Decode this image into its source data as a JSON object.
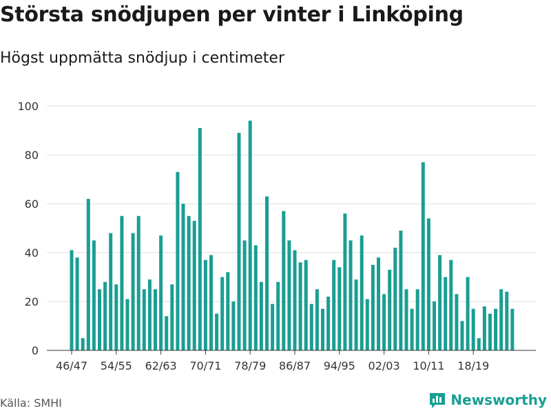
{
  "header": {
    "title": "Största snödjupen per vinter i Linköping",
    "subtitle": "Högst uppmätta snödjup i centimeter"
  },
  "footer": {
    "source": "Källa: SMHI",
    "brand": "Newsworthy",
    "brand_icon": "bar-chart-logo-icon"
  },
  "colors": {
    "bar": "#1a9e93",
    "grid": "#dddddd",
    "axis": "#333333"
  },
  "chart_data": {
    "type": "bar",
    "title": "Största snödjupen per vinter i Linköping",
    "subtitle": "Högst uppmätta snödjup i centimeter",
    "xlabel": "",
    "ylabel": "",
    "ylim": [
      0,
      100
    ],
    "yticks": [
      0,
      20,
      40,
      60,
      80,
      100
    ],
    "grid": true,
    "categories": [
      "46/47",
      "47/48",
      "48/49",
      "49/50",
      "50/51",
      "51/52",
      "52/53",
      "53/54",
      "54/55",
      "55/56",
      "56/57",
      "57/58",
      "58/59",
      "59/60",
      "60/61",
      "61/62",
      "62/63",
      "63/64",
      "64/65",
      "65/66",
      "66/67",
      "67/68",
      "68/69",
      "69/70",
      "70/71",
      "71/72",
      "72/73",
      "73/74",
      "74/75",
      "75/76",
      "76/77",
      "77/78",
      "78/79",
      "79/80",
      "80/81",
      "81/82",
      "82/83",
      "83/84",
      "84/85",
      "85/86",
      "86/87",
      "87/88",
      "88/89",
      "89/90",
      "90/91",
      "91/92",
      "92/93",
      "93/94",
      "94/95",
      "95/96",
      "96/97",
      "97/98",
      "98/99",
      "99/00",
      "00/01",
      "01/02",
      "02/03",
      "03/04",
      "04/05",
      "05/06",
      "06/07",
      "07/08",
      "08/09",
      "09/10",
      "10/11",
      "11/12",
      "12/13",
      "13/14",
      "14/15",
      "15/16",
      "16/17",
      "17/18",
      "18/19",
      "19/20",
      "20/21",
      "21/22",
      "22/23",
      "23/24",
      "24/25",
      "25/26"
    ],
    "tick_labels": [
      "46/47",
      "54/55",
      "62/63",
      "70/71",
      "78/79",
      "86/87",
      "94/95",
      "02/03",
      "10/11",
      "18/19"
    ],
    "values": [
      41,
      38,
      5,
      62,
      45,
      25,
      28,
      48,
      27,
      55,
      21,
      48,
      55,
      25,
      29,
      25,
      47,
      14,
      27,
      73,
      60,
      55,
      53,
      91,
      37,
      39,
      15,
      30,
      32,
      20,
      89,
      45,
      94,
      43,
      28,
      63,
      19,
      28,
      57,
      45,
      41,
      36,
      37,
      19,
      25,
      17,
      22,
      37,
      34,
      56,
      45,
      29,
      47,
      21,
      35,
      38,
      23,
      33,
      42,
      49,
      25,
      17,
      25,
      77,
      54,
      20,
      39,
      30,
      37,
      23,
      12,
      30,
      17,
      5,
      18,
      15,
      17,
      25,
      24,
      17
    ]
  }
}
